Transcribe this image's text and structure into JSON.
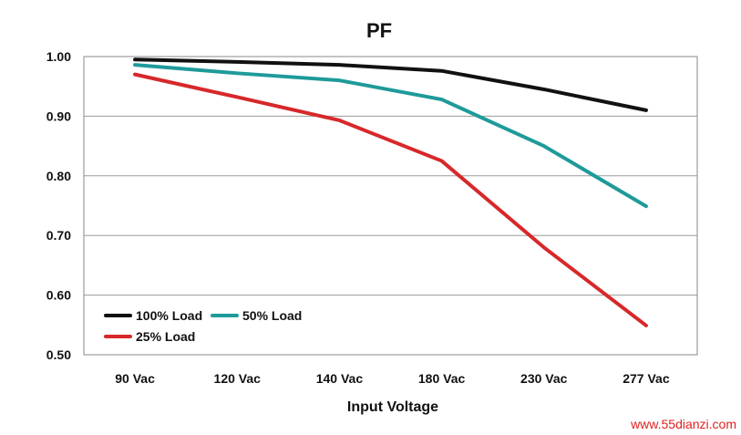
{
  "chart_data": {
    "type": "line",
    "title": "PF",
    "xlabel": "Input Voltage",
    "ylabel": "",
    "categories": [
      "90 Vac",
      "120 Vac",
      "140 Vac",
      "180 Vac",
      "230 Vac",
      "277 Vac"
    ],
    "ylim": [
      0.5,
      1.0
    ],
    "yticks": [
      "1.00",
      "0.90",
      "0.80",
      "0.70",
      "0.60",
      "0.50"
    ],
    "ytick_values": [
      1.0,
      0.9,
      0.8,
      0.7,
      0.6,
      0.5
    ],
    "grid": true,
    "legend_position": "bottom-left",
    "series": [
      {
        "name": "100% Load",
        "color": "#111111",
        "values": [
          0.995,
          0.991,
          0.986,
          0.976,
          0.945,
          0.91
        ]
      },
      {
        "name": "50% Load",
        "color": "#1f9a9a",
        "values": [
          0.986,
          0.972,
          0.96,
          0.928,
          0.85,
          0.749
        ]
      },
      {
        "name": "25% Load",
        "color": "#d7282a",
        "values": [
          0.97,
          0.932,
          0.893,
          0.825,
          0.68,
          0.549
        ]
      }
    ]
  },
  "watermark": "www.55dianzi.com"
}
